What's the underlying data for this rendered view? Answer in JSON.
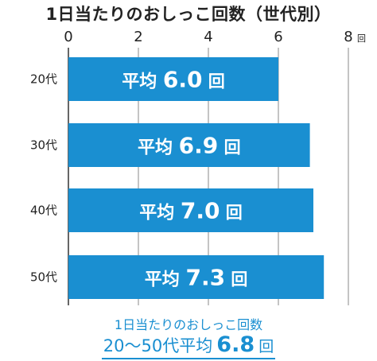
{
  "title": "1日当たりのおしっこ回数（世代別）",
  "bar_color": "#1a8fd1",
  "summary": {
    "line1": "1日当たりのおしっこ回数",
    "line2_label": "20〜50代平均",
    "line2_value": "6.8",
    "line2_unit": "回"
  },
  "chart_data": {
    "type": "bar",
    "orientation": "horizontal",
    "title": "1日当たりのおしっこ回数（世代別）",
    "categories": [
      "20代",
      "30代",
      "40代",
      "50代"
    ],
    "values": [
      6.0,
      6.9,
      7.0,
      7.3
    ],
    "bar_label_prefix": "平均",
    "bar_label_unit": "回",
    "xlim": [
      0,
      8
    ],
    "x_ticks": [
      "0",
      "2",
      "4",
      "6",
      "8"
    ],
    "x_tick_unit": "回",
    "grid": "vertical"
  }
}
